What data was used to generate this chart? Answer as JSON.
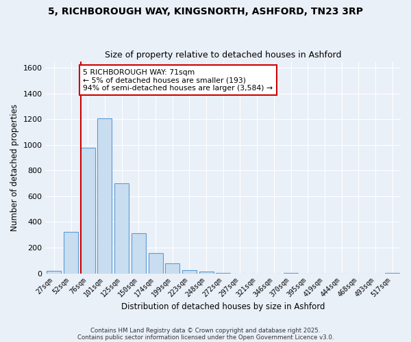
{
  "title": "5, RICHBOROUGH WAY, KINGSNORTH, ASHFORD, TN23 3RP",
  "subtitle": "Size of property relative to detached houses in Ashford",
  "xlabel": "Distribution of detached houses by size in Ashford",
  "ylabel": "Number of detached properties",
  "categories": [
    "27sqm",
    "52sqm",
    "76sqm",
    "101sqm",
    "125sqm",
    "150sqm",
    "174sqm",
    "199sqm",
    "223sqm",
    "248sqm",
    "272sqm",
    "297sqm",
    "321sqm",
    "346sqm",
    "370sqm",
    "395sqm",
    "419sqm",
    "444sqm",
    "468sqm",
    "493sqm",
    "517sqm"
  ],
  "values": [
    20,
    325,
    975,
    1205,
    700,
    310,
    155,
    75,
    25,
    15,
    5,
    0,
    0,
    0,
    5,
    0,
    0,
    0,
    0,
    0,
    5
  ],
  "bar_color": "#c9ddf0",
  "bar_edge_color": "#5b9bd5",
  "background_color": "#eaf0f8",
  "grid_color": "#ffffff",
  "vline_x_index": 2,
  "vline_color": "#cc0000",
  "annotation_text": "5 RICHBOROUGH WAY: 71sqm\n← 5% of detached houses are smaller (193)\n94% of semi-detached houses are larger (3,584) →",
  "annotation_box_color": "#ffffff",
  "annotation_box_edge_color": "#cc0000",
  "ylim": [
    0,
    1650
  ],
  "yticks": [
    0,
    200,
    400,
    600,
    800,
    1000,
    1200,
    1400,
    1600
  ],
  "footer1": "Contains HM Land Registry data © Crown copyright and database right 2025.",
  "footer2": "Contains public sector information licensed under the Open Government Licence v3.0."
}
